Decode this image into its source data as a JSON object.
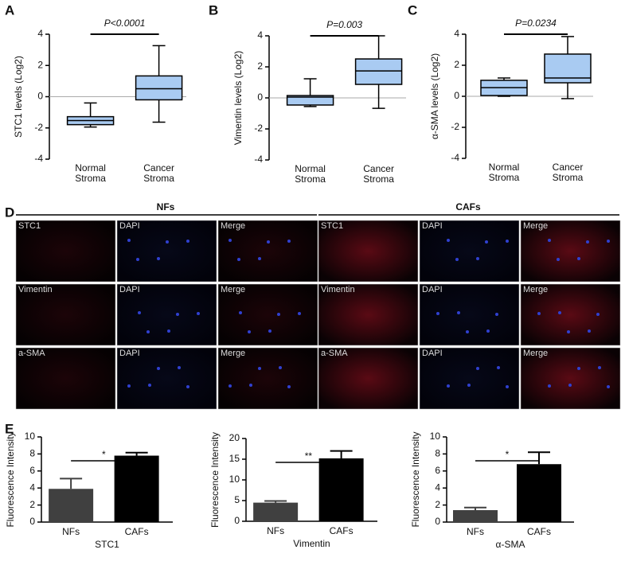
{
  "panel_labels": [
    "A",
    "B",
    "C",
    "D",
    "E"
  ],
  "chart_data": [
    {
      "type": "box",
      "ylabel": "STC1  levels (Log2)",
      "annotation": "P<0.0001",
      "categories": [
        "Normal Stroma",
        "Cancer Stroma"
      ],
      "color": "#a9cbf2",
      "boxes": [
        {
          "low": -1.94,
          "q1": -1.79,
          "median": -1.53,
          "q3": -1.28,
          "high": -0.4
        },
        {
          "low": -1.63,
          "q1": -0.2,
          "median": 0.51,
          "q3": 1.33,
          "high": 3.27
        }
      ],
      "ylim": [
        -4,
        4
      ],
      "yticks": [
        -4,
        -2,
        0,
        2,
        4
      ]
    },
    {
      "type": "box",
      "ylabel": "Vimentin  levels (Log2)",
      "annotation": "P=0.003",
      "categories": [
        "Normal Stroma",
        "Cancer Stroma"
      ],
      "color": "#a9cbf2",
      "boxes": [
        {
          "low": -0.56,
          "q1": -0.46,
          "median": 0.05,
          "q3": 0.15,
          "high": 1.23
        },
        {
          "low": -0.67,
          "q1": 0.87,
          "median": 1.74,
          "q3": 2.51,
          "high": 4.0
        }
      ],
      "ylim": [
        -4,
        4
      ],
      "yticks": [
        -4,
        -2,
        0,
        2,
        4
      ]
    },
    {
      "type": "box",
      "ylabel": "α-SMA  levels (Log2)",
      "annotation": "P=0.0234",
      "categories": [
        "Normal Stroma",
        "Cancer Stroma"
      ],
      "color": "#a9cbf2",
      "boxes": [
        {
          "low": 0.0,
          "q1": 0.05,
          "median": 0.56,
          "q3": 1.03,
          "high": 1.18
        },
        {
          "low": -0.15,
          "q1": 0.87,
          "median": 1.18,
          "q3": 2.72,
          "high": 3.85
        }
      ],
      "ylim": [
        -4,
        4
      ],
      "yticks": [
        -4,
        -2,
        0,
        2,
        4
      ]
    },
    {
      "type": "bar",
      "ylabel": "Fluorescence Intensity",
      "xlabel": "STC1",
      "annotation": "*",
      "categories": [
        "NFs",
        "CAFs"
      ],
      "values": [
        3.9,
        7.8
      ],
      "errors": [
        1.2,
        0.35
      ],
      "colors": [
        "#404040",
        "#000000"
      ],
      "ylim": [
        0,
        10
      ],
      "yticks": [
        0,
        2,
        4,
        6,
        8,
        10
      ]
    },
    {
      "type": "bar",
      "ylabel": "Fluorescence Intensity",
      "xlabel": "Vimentin",
      "annotation": "**",
      "categories": [
        "NFs",
        "CAFs"
      ],
      "values": [
        4.5,
        15.2
      ],
      "errors": [
        0.4,
        1.8
      ],
      "colors": [
        "#404040",
        "#000000"
      ],
      "ylim": [
        0,
        20
      ],
      "yticks": [
        0,
        5,
        10,
        15,
        20
      ]
    },
    {
      "type": "bar",
      "ylabel": "Fluorescence Intensity",
      "xlabel": "α-SMA",
      "annotation": "*",
      "categories": [
        "NFs",
        "CAFs"
      ],
      "values": [
        1.4,
        6.8
      ],
      "errors": [
        0.3,
        1.4
      ],
      "colors": [
        "#404040",
        "#000000"
      ],
      "ylim": [
        0,
        10
      ],
      "yticks": [
        0,
        2,
        4,
        6,
        8,
        10
      ]
    }
  ],
  "image_panel": {
    "groups": [
      "NFs",
      "CAFs"
    ],
    "rows": [
      [
        "STC1",
        "DAPI",
        "Merge",
        "STC1",
        "DAPI",
        "Merge"
      ],
      [
        "Vimentin",
        "DAPI",
        "Merge",
        "Vimentin",
        "DAPI",
        "Merge"
      ],
      [
        "a-SMA",
        "DAPI",
        "Merge",
        "a-SMA",
        "DAPI",
        "Merge"
      ]
    ]
  }
}
